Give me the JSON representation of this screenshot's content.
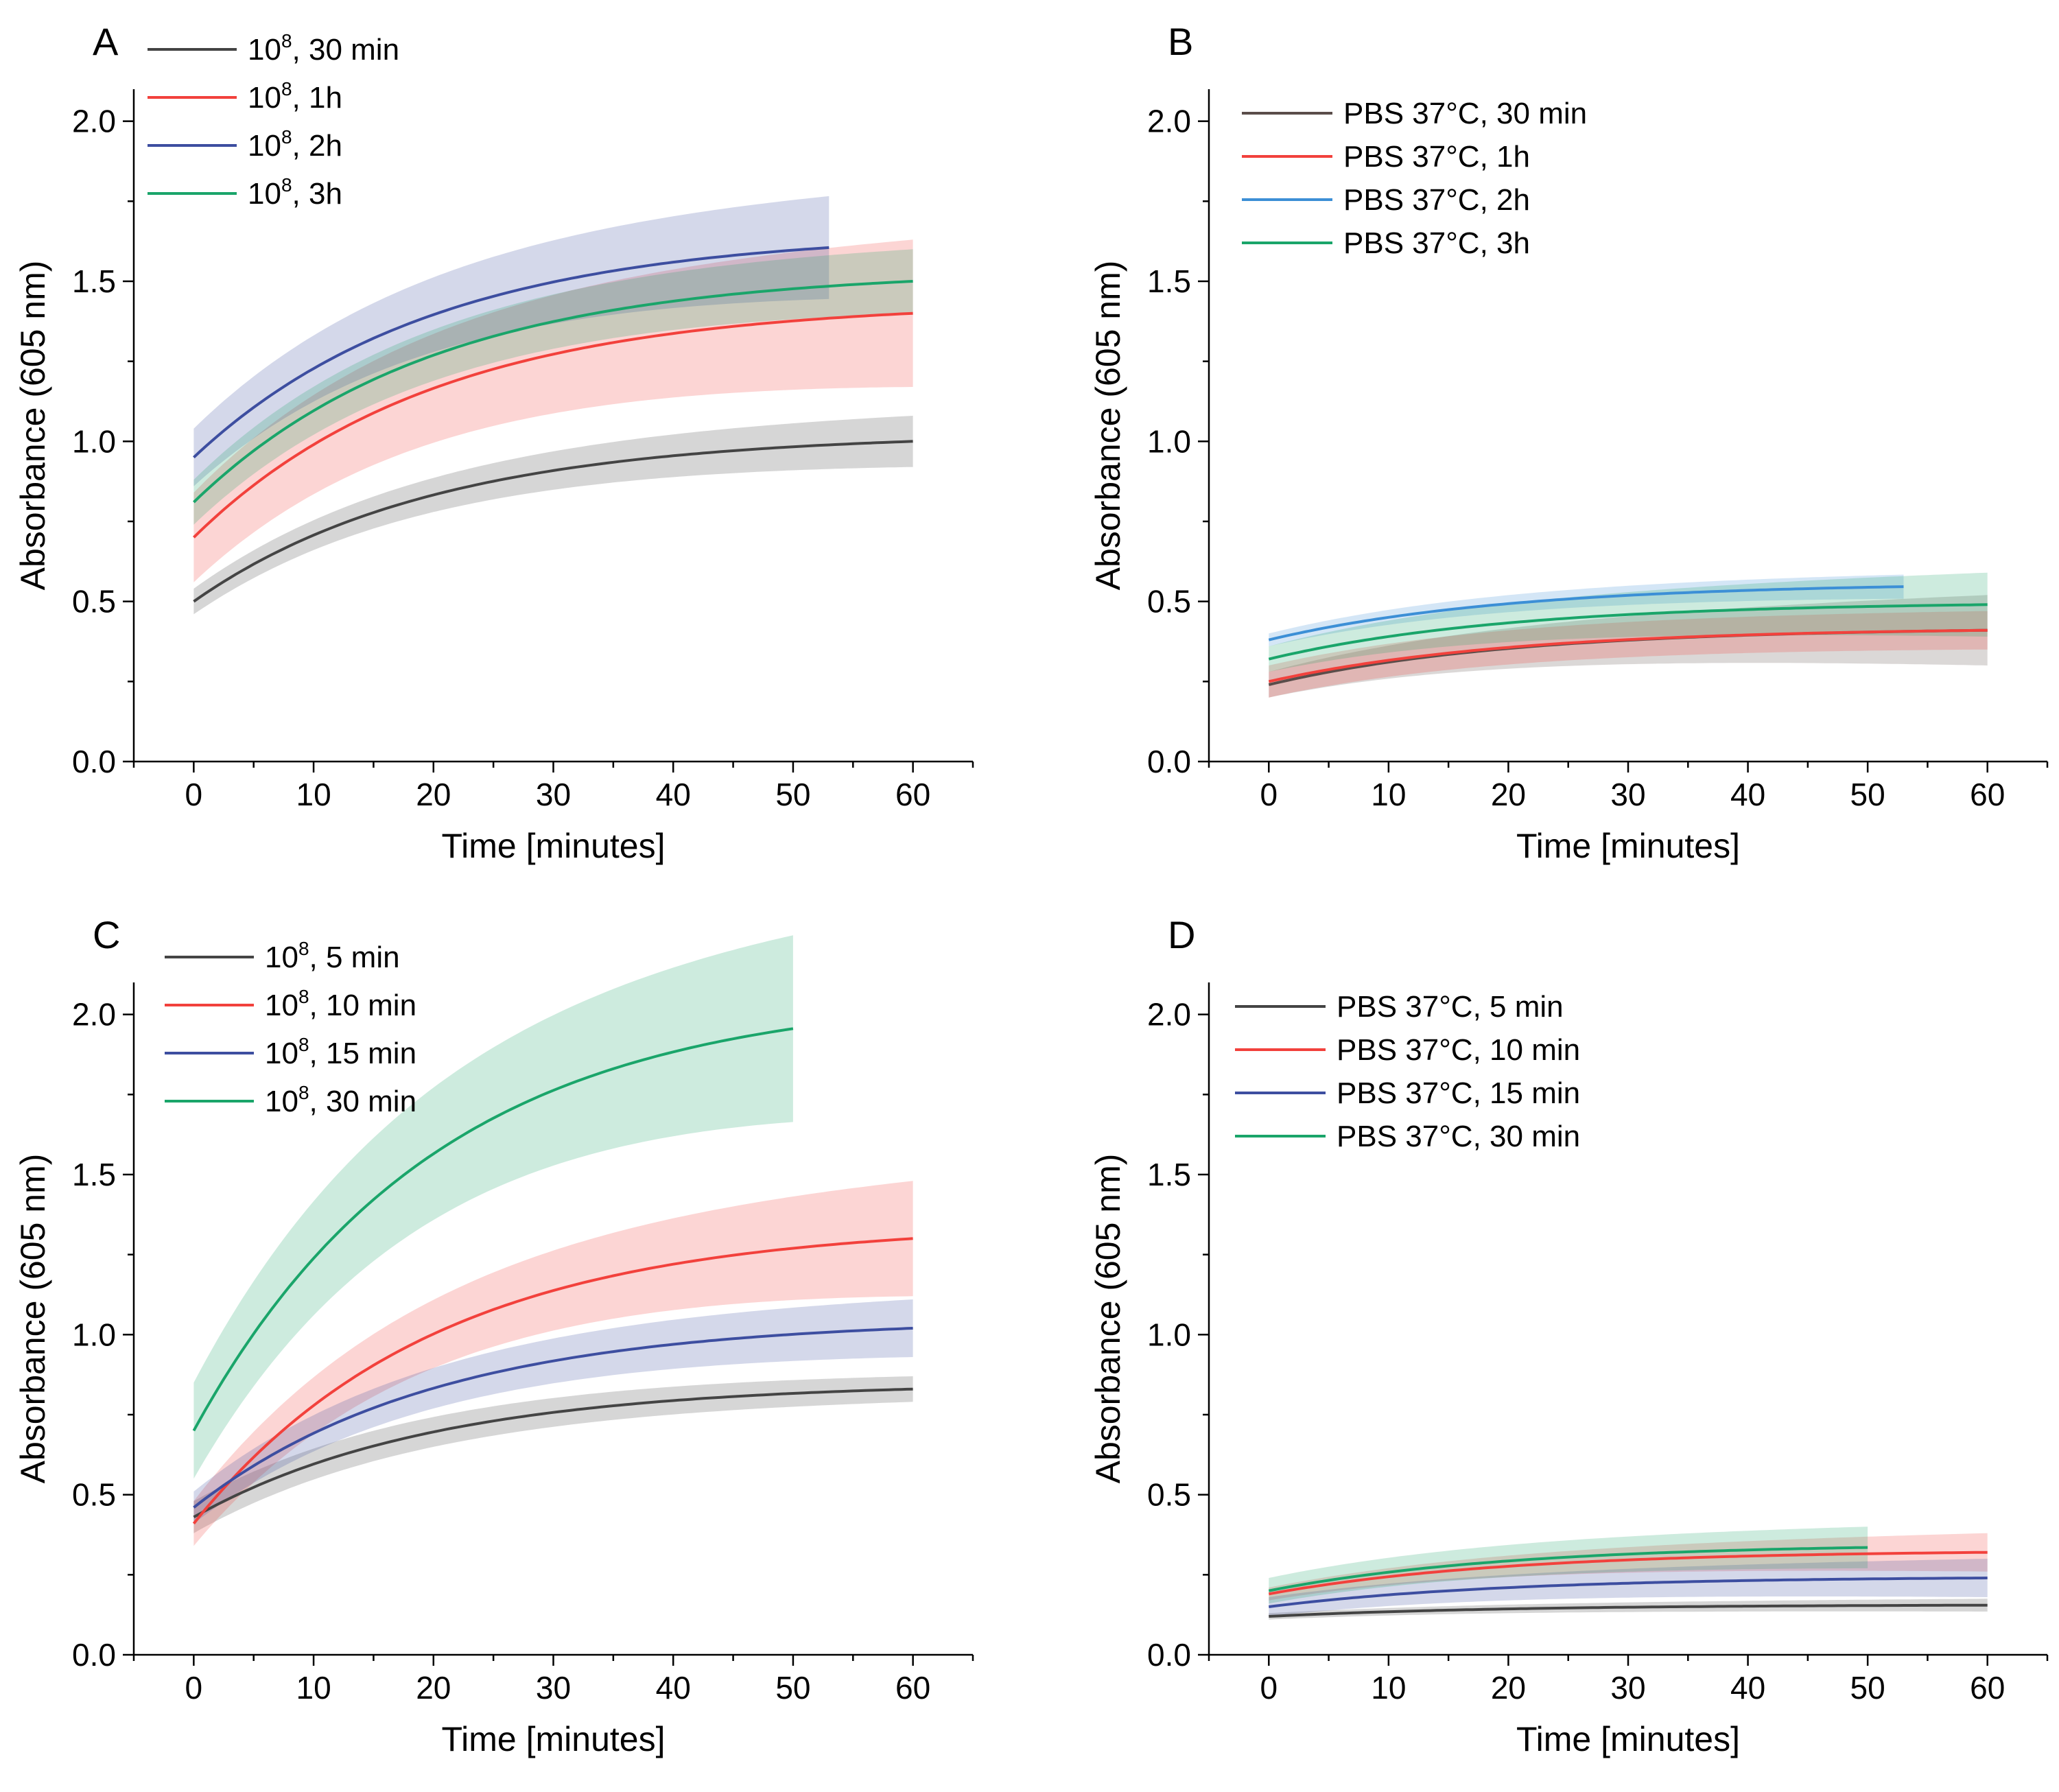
{
  "chart_data": [
    {
      "panel": "A",
      "type": "line",
      "xlabel": "Time [minutes]",
      "ylabel": "Absorbance (605 nm)",
      "xlim": [
        -5,
        65
      ],
      "ylim": [
        0,
        2.1
      ],
      "xticks": [
        "0",
        "10",
        "20",
        "30",
        "40",
        "50",
        "60"
      ],
      "yticks": [
        "0.0",
        "0.5",
        "1.0",
        "1.5",
        "2.0"
      ],
      "legend_position": "top-left",
      "series": [
        {
          "name": "10^8, 30 min",
          "base": "10",
          "sup": "8",
          "suffix": ", 30 min",
          "color": "#444444",
          "start": 0.5,
          "end": 1.0,
          "band_start": 0.04,
          "band_end": 0.08,
          "xmax": 60
        },
        {
          "name": "10^8, 1h",
          "base": "10",
          "sup": "8",
          "suffix": ", 1h",
          "color": "#f2413c",
          "start": 0.7,
          "end": 1.4,
          "band_start": 0.14,
          "band_end": 0.23,
          "xmax": 60
        },
        {
          "name": "10^8, 2h",
          "base": "10",
          "sup": "8",
          "suffix": ", 2h",
          "color": "#3d4ea0",
          "start": 0.95,
          "end": 1.62,
          "band_start": 0.09,
          "band_end": 0.17,
          "xmax": 53
        },
        {
          "name": "10^8, 3h",
          "base": "10",
          "sup": "8",
          "suffix": ", 3h",
          "color": "#1aa56a",
          "start": 0.81,
          "end": 1.5,
          "band_start": 0.07,
          "band_end": 0.1,
          "xmax": 60
        }
      ]
    },
    {
      "panel": "B",
      "type": "line",
      "xlabel": "Time [minutes]",
      "ylabel": "Absorbance (605 nm)",
      "xlim": [
        -5,
        65
      ],
      "ylim": [
        0,
        2.1
      ],
      "xticks": [
        "0",
        "10",
        "20",
        "30",
        "40",
        "50",
        "60"
      ],
      "yticks": [
        "0.0",
        "0.5",
        "1.0",
        "1.5",
        "2.0"
      ],
      "legend_position": "top-left",
      "series": [
        {
          "name": "PBS 37°C, 30 min",
          "base": "PBS 37°C, 30 min",
          "sup": "",
          "suffix": "",
          "color": "#5a4d4a",
          "start": 0.24,
          "end": 0.41,
          "band_start": 0.04,
          "band_end": 0.11,
          "xmax": 60
        },
        {
          "name": "PBS 37°C, 1h",
          "base": "PBS 37°C, 1h",
          "sup": "",
          "suffix": "",
          "color": "#f2413c",
          "start": 0.25,
          "end": 0.41,
          "band_start": 0.05,
          "band_end": 0.06,
          "xmax": 60
        },
        {
          "name": "PBS 37°C, 2h",
          "base": "PBS 37°C, 2h",
          "sup": "",
          "suffix": "",
          "color": "#3c8fd6",
          "start": 0.38,
          "end": 0.55,
          "band_start": 0.02,
          "band_end": 0.04,
          "xmax": 53
        },
        {
          "name": "PBS 37°C, 3h",
          "base": "PBS 37°C, 3h",
          "sup": "",
          "suffix": "",
          "color": "#1aa56a",
          "start": 0.32,
          "end": 0.49,
          "band_start": 0.04,
          "band_end": 0.1,
          "xmax": 60
        }
      ]
    },
    {
      "panel": "C",
      "type": "line",
      "xlabel": "Time [minutes]",
      "ylabel": "Absorbance (605 nm)",
      "xlim": [
        -5,
        65
      ],
      "ylim": [
        0,
        2.1
      ],
      "xticks": [
        "0",
        "10",
        "20",
        "30",
        "40",
        "50",
        "60"
      ],
      "yticks": [
        "0.0",
        "0.5",
        "1.0",
        "1.5",
        "2.0"
      ],
      "legend_position": "top-left",
      "series": [
        {
          "name": "10^8, 5 min",
          "base": "10",
          "sup": "8",
          "suffix": ", 5 min",
          "color": "#444444",
          "start": 0.43,
          "end": 0.83,
          "band_start": 0.05,
          "band_end": 0.04,
          "xmax": 60
        },
        {
          "name": "10^8, 10 min",
          "base": "10",
          "sup": "8",
          "suffix": ", 10 min",
          "color": "#f2413c",
          "start": 0.41,
          "end": 1.3,
          "band_start": 0.07,
          "band_end": 0.18,
          "xmax": 60
        },
        {
          "name": "10^8, 15 min",
          "base": "10",
          "sup": "8",
          "suffix": ", 15 min",
          "color": "#3d4ea0",
          "start": 0.46,
          "end": 1.02,
          "band_start": 0.05,
          "band_end": 0.09,
          "xmax": 60
        },
        {
          "name": "10^8, 30 min",
          "base": "10",
          "sup": "8",
          "suffix": ", 30 min",
          "color": "#1aa56a",
          "start": 0.7,
          "end": 2.0,
          "band_start": 0.15,
          "band_end": 0.32,
          "xmax": 50
        }
      ]
    },
    {
      "panel": "D",
      "type": "line",
      "xlabel": "Time [minutes]",
      "ylabel": "Absorbance (605 nm)",
      "xlim": [
        -5,
        65
      ],
      "ylim": [
        0,
        2.1
      ],
      "xticks": [
        "0",
        "10",
        "20",
        "30",
        "40",
        "50",
        "60"
      ],
      "yticks": [
        "0.0",
        "0.5",
        "1.0",
        "1.5",
        "2.0"
      ],
      "legend_position": "top-left",
      "series": [
        {
          "name": "PBS 37°C, 5 min",
          "base": "PBS 37°C, 5 min",
          "sup": "",
          "suffix": "",
          "color": "#444444",
          "start": 0.12,
          "end": 0.155,
          "band_start": 0.01,
          "band_end": 0.02,
          "xmax": 60
        },
        {
          "name": "PBS 37°C, 10 min",
          "base": "PBS 37°C, 10 min",
          "sup": "",
          "suffix": "",
          "color": "#f2413c",
          "start": 0.19,
          "end": 0.32,
          "band_start": 0.02,
          "band_end": 0.06,
          "xmax": 60
        },
        {
          "name": "PBS 37°C, 15 min",
          "base": "PBS 37°C, 15 min",
          "sup": "",
          "suffix": "",
          "color": "#3d4ea0",
          "start": 0.15,
          "end": 0.24,
          "band_start": 0.03,
          "band_end": 0.06,
          "xmax": 60
        },
        {
          "name": "PBS 37°C, 30 min",
          "base": "PBS 37°C, 30 min",
          "sup": "",
          "suffix": "",
          "color": "#1aa56a",
          "start": 0.2,
          "end": 0.34,
          "band_start": 0.04,
          "band_end": 0.07,
          "xmax": 50
        }
      ]
    }
  ]
}
